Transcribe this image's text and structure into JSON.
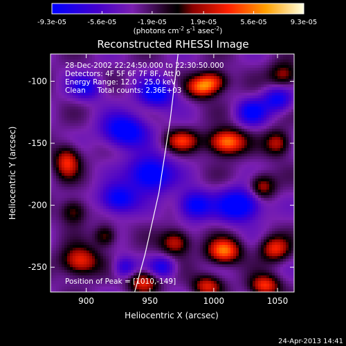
{
  "chart_data": {
    "type": "heatmap",
    "title": "Reconstructed RHESSI Image",
    "xlabel": "Heliocentric X (arcsec)",
    "ylabel": "Heliocentric Y (arcsec)",
    "xlim": [
      872,
      1063
    ],
    "ylim": [
      -270,
      -78
    ],
    "xticks": [
      900,
      950,
      1000,
      1050
    ],
    "yticks": [
      -100,
      -150,
      -200,
      -250
    ],
    "colorbar": {
      "range": [
        -9.3e-05,
        9.3e-05
      ],
      "ticklabels": [
        "-9.3e-05",
        "-5.6e-05",
        "-1.9e-05",
        "1.9e-05",
        "5.6e-05",
        "9.3e-05"
      ],
      "unit_label": "(photons cm",
      "unit_exp1": "-2",
      "unit_mid": " s",
      "unit_exp2": "-1",
      "unit_mid2": " asec",
      "unit_exp3": "-2",
      "unit_end": ")"
    },
    "annotations": [
      "28-Dec-2002 22:24:50.000 to 22:30:50.000",
      "Detectors: 4F 5F 6F 7F 8F, Att 0",
      "Energy Range: 12.0 - 25.0 keV",
      "Clean     Total counts: 2.36E+03"
    ],
    "peak": {
      "label": "Position of Peak = [1010,-149]",
      "x": 1010,
      "y": -149
    },
    "limb_curve": [
      [
        972,
        -78
      ],
      [
        966,
        -130
      ],
      [
        957,
        -190
      ],
      [
        946,
        -240
      ],
      [
        938,
        -270
      ]
    ],
    "sources": [
      {
        "x": 1010,
        "y": -149,
        "v": 9.3e-05,
        "sx": 10,
        "sy": 7
      },
      {
        "x": 975,
        "y": -148,
        "v": 6e-05,
        "sx": 9,
        "sy": 6
      },
      {
        "x": 990,
        "y": -105,
        "v": 7e-05,
        "sx": 8,
        "sy": 6
      },
      {
        "x": 1000,
        "y": -100,
        "v": 6e-05,
        "sx": 8,
        "sy": 6
      },
      {
        "x": 885,
        "y": -165,
        "v": 6.5e-05,
        "sx": 7,
        "sy": 9
      },
      {
        "x": 1055,
        "y": -95,
        "v": 5e-05,
        "sx": 8,
        "sy": 7
      },
      {
        "x": 1050,
        "y": -150,
        "v": 5.5e-05,
        "sx": 7,
        "sy": 7
      },
      {
        "x": 1038,
        "y": -185,
        "v": 5.5e-05,
        "sx": 7,
        "sy": 7
      },
      {
        "x": 1008,
        "y": -237,
        "v": 8.5e-05,
        "sx": 9,
        "sy": 7
      },
      {
        "x": 970,
        "y": -230,
        "v": 6e-05,
        "sx": 8,
        "sy": 7
      },
      {
        "x": 1048,
        "y": -235,
        "v": 6.5e-05,
        "sx": 8,
        "sy": 7
      },
      {
        "x": 895,
        "y": -245,
        "v": 7e-05,
        "sx": 10,
        "sy": 8
      },
      {
        "x": 945,
        "y": -262,
        "v": 6.5e-05,
        "sx": 8,
        "sy": 6
      },
      {
        "x": 995,
        "y": -265,
        "v": 6e-05,
        "sx": 8,
        "sy": 6
      },
      {
        "x": 1040,
        "y": -265,
        "v": 7e-05,
        "sx": 8,
        "sy": 6
      },
      {
        "x": 890,
        "y": -205,
        "v": 4.5e-05,
        "sx": 7,
        "sy": 7
      },
      {
        "x": 915,
        "y": -225,
        "v": 4.5e-05,
        "sx": 6,
        "sy": 6
      },
      {
        "x": 955,
        "y": -110,
        "v": -7e-05,
        "sx": 10,
        "sy": 8
      },
      {
        "x": 930,
        "y": -140,
        "v": -8e-05,
        "sx": 12,
        "sy": 9
      },
      {
        "x": 950,
        "y": -175,
        "v": -8.5e-05,
        "sx": 12,
        "sy": 10
      },
      {
        "x": 925,
        "y": -195,
        "v": -7e-05,
        "sx": 10,
        "sy": 8
      },
      {
        "x": 1020,
        "y": -200,
        "v": -8.5e-05,
        "sx": 12,
        "sy": 9
      },
      {
        "x": 1050,
        "y": -115,
        "v": -6e-05,
        "sx": 8,
        "sy": 7
      },
      {
        "x": 1030,
        "y": -125,
        "v": -6e-05,
        "sx": 8,
        "sy": 7
      },
      {
        "x": 900,
        "y": -105,
        "v": -5e-05,
        "sx": 9,
        "sy": 7
      },
      {
        "x": 985,
        "y": -200,
        "v": -7e-05,
        "sx": 9,
        "sy": 8
      },
      {
        "x": 960,
        "y": -250,
        "v": -5e-05,
        "sx": 7,
        "sy": 6
      },
      {
        "x": 930,
        "y": -250,
        "v": -4.5e-05,
        "sx": 6,
        "sy": 6
      }
    ],
    "grid": false
  },
  "footer": {
    "timestamp": "24-Apr-2013 14:41"
  }
}
